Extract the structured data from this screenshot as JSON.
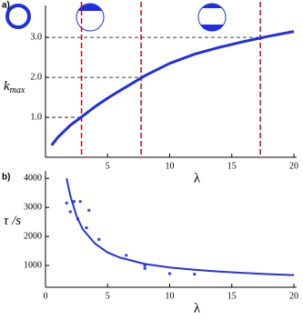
{
  "chart_data": [
    {
      "type": "line",
      "panel_label": "a)",
      "xlabel": "λ",
      "ylabel": "k",
      "ylabel_sub": "max",
      "xlim": [
        0,
        20
      ],
      "ylim": [
        0,
        3.8
      ],
      "xticks": [
        5,
        10,
        15,
        20
      ],
      "yticks": [
        {
          "value": 1,
          "label": "1.0"
        },
        {
          "value": 2,
          "label": "2.0"
        },
        {
          "value": 3,
          "label": "3.0"
        }
      ],
      "series": [
        {
          "mode": "lines",
          "color": "#1f2fe0",
          "x": [
            0.5,
            1,
            2,
            3,
            4,
            5,
            6,
            8,
            10,
            12,
            14,
            16,
            18,
            20
          ],
          "values": [
            0.3,
            0.5,
            0.8,
            1.03,
            1.27,
            1.48,
            1.67,
            2.04,
            2.35,
            2.58,
            2.75,
            2.9,
            3.03,
            3.15
          ]
        }
      ],
      "thresholds": [
        {
          "x": 2.9,
          "y": 1
        },
        {
          "x": 7.7,
          "y": 2
        },
        {
          "x": 17.3,
          "y": 3
        }
      ]
    },
    {
      "type": "scatter",
      "panel_label": "b)",
      "xlabel": "λ",
      "ylabel": "τ /s",
      "xlim": [
        0,
        20
      ],
      "ylim": [
        250,
        4100
      ],
      "xticks": [
        0,
        5,
        10,
        15,
        20
      ],
      "yticks": [
        1000,
        2000,
        3000,
        4000
      ],
      "series": [
        {
          "mode": "markers",
          "color": "#3344e0",
          "x": [
            1.7,
            2.0,
            2.3,
            2.6,
            2.8,
            3.3,
            3.5,
            4.3,
            6.5,
            8,
            8,
            10,
            12
          ],
          "values": [
            3150,
            2850,
            3200,
            2600,
            3200,
            2300,
            2900,
            1900,
            1350,
            1000,
            900,
            720,
            700
          ]
        },
        {
          "mode": "lines",
          "color": "#2233e0",
          "x": [
            1.7,
            2,
            2.5,
            3,
            4,
            5,
            6,
            8,
            10,
            12,
            14,
            16,
            18,
            20
          ],
          "values": [
            4000,
            3400,
            2700,
            2250,
            1750,
            1450,
            1270,
            1050,
            930,
            850,
            790,
            740,
            700,
            670
          ]
        }
      ]
    }
  ]
}
